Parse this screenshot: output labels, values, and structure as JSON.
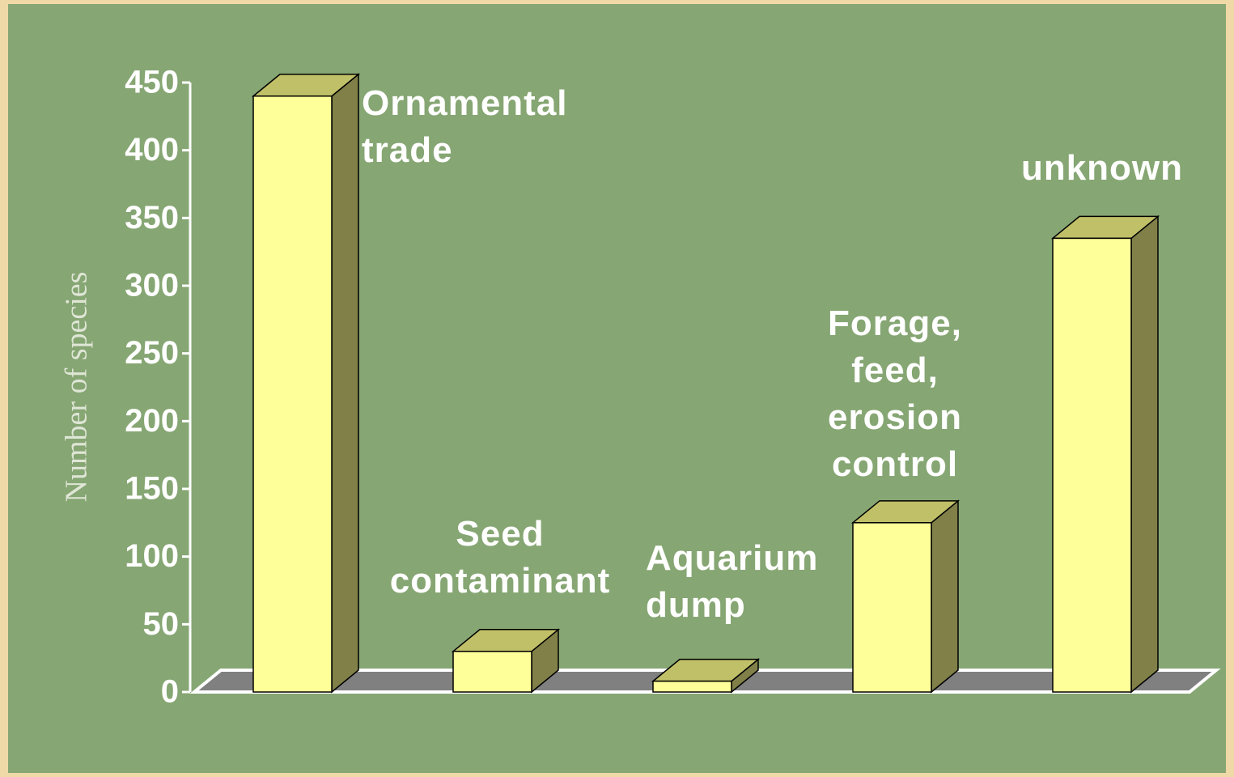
{
  "chart_data": {
    "type": "bar3d",
    "y_label": "Number of species",
    "categories": [
      "Ornamental\ntrade",
      "Seed\ncontaminant",
      "Aquarium\ndump",
      "Forage,\nfeed,\nerosion\ncontrol",
      "unknown"
    ],
    "values": [
      440,
      30,
      8,
      125,
      335
    ],
    "color": "#ffff99",
    "ylim": [
      0,
      450
    ],
    "yticks": [
      0,
      50,
      100,
      150,
      200,
      250,
      300,
      350,
      400,
      450
    ]
  }
}
